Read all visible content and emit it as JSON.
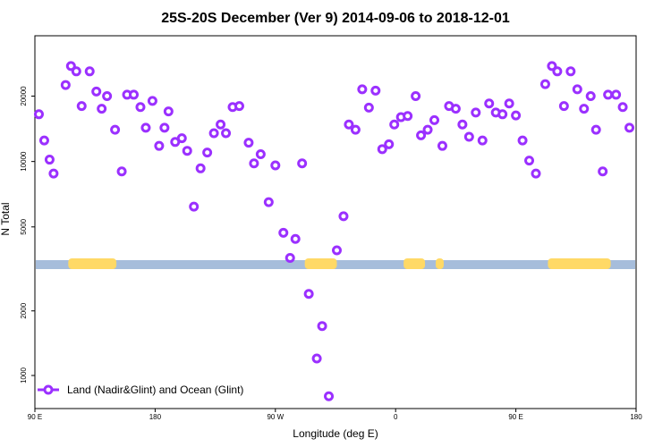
{
  "chart_data": {
    "type": "scatter",
    "title": "25S-20S December (Ver 9)   2014-09-06 to 2018-12-01",
    "xlabel": "Longitude (deg E)",
    "ylabel": "N Total",
    "xlim": [
      90,
      540
    ],
    "y_scale": "piecewise-log",
    "x_ticks": [
      {
        "value": 90,
        "label": "90 E"
      },
      {
        "value": 180,
        "label": "180"
      },
      {
        "value": 270,
        "label": "90 W"
      },
      {
        "value": 360,
        "label": "0"
      },
      {
        "value": 450,
        "label": "90 E"
      },
      {
        "value": 540,
        "label": "180"
      }
    ],
    "y_ticks_upper": [
      5000,
      10000,
      20000
    ],
    "y_ticks_lower": [
      1000,
      2000
    ],
    "grid": false,
    "legend_position": "bottom-left",
    "marker_color": "#9b30ff",
    "surface_colors": {
      "ocean": "#a6bddb",
      "land": "#ffd966"
    },
    "series": [
      {
        "name": "Land (Nadir&Glint) and Ocean (Glint)",
        "points": [
          [
            93,
            16500
          ],
          [
            97,
            12500
          ],
          [
            101,
            10200
          ],
          [
            104,
            8800
          ],
          [
            113,
            22500
          ],
          [
            117,
            27500
          ],
          [
            121,
            26000
          ],
          [
            125,
            18000
          ],
          [
            131,
            26000
          ],
          [
            136,
            21000
          ],
          [
            140,
            17500
          ],
          [
            144,
            20000
          ],
          [
            150,
            14000
          ],
          [
            155,
            9000
          ],
          [
            159,
            20300
          ],
          [
            164,
            20300
          ],
          [
            169,
            17800
          ],
          [
            173,
            14300
          ],
          [
            178,
            19000
          ],
          [
            183,
            11800
          ],
          [
            187,
            14300
          ],
          [
            190,
            17000
          ],
          [
            195,
            12300
          ],
          [
            200,
            12800
          ],
          [
            204,
            11200
          ],
          [
            209,
            6200
          ],
          [
            214,
            9300
          ],
          [
            219,
            11000
          ],
          [
            224,
            13500
          ],
          [
            229,
            14800
          ],
          [
            233,
            13500
          ],
          [
            238,
            17800
          ],
          [
            243,
            18000
          ],
          [
            250,
            12200
          ],
          [
            254,
            9800
          ],
          [
            259,
            10800
          ],
          [
            265,
            6500
          ],
          [
            270,
            9600
          ],
          [
            276,
            4700
          ],
          [
            281,
            3600
          ],
          [
            285,
            4400
          ],
          [
            290,
            9800
          ],
          [
            295,
            2400
          ],
          [
            301,
            1200
          ],
          [
            305,
            1700
          ],
          [
            310,
            800
          ],
          [
            316,
            3900
          ],
          [
            321,
            5600
          ],
          [
            325,
            14800
          ],
          [
            330,
            14000
          ],
          [
            335,
            21500
          ],
          [
            340,
            17700
          ],
          [
            345,
            21200
          ],
          [
            350,
            11400
          ],
          [
            355,
            12000
          ],
          [
            359,
            14800
          ],
          [
            364,
            16000
          ],
          [
            369,
            16200
          ],
          [
            375,
            20000
          ],
          [
            379,
            13200
          ],
          [
            384,
            14000
          ],
          [
            389,
            15500
          ],
          [
            395,
            11800
          ],
          [
            400,
            18000
          ],
          [
            405,
            17500
          ],
          [
            410,
            14800
          ],
          [
            415,
            13000
          ],
          [
            420,
            16800
          ],
          [
            425,
            12500
          ],
          [
            430,
            18500
          ],
          [
            435,
            16800
          ],
          [
            440,
            16500
          ],
          [
            445,
            18500
          ],
          [
            450,
            16300
          ],
          [
            455,
            12500
          ],
          [
            460,
            10100
          ],
          [
            465,
            8800
          ],
          [
            472,
            22700
          ],
          [
            477,
            27500
          ],
          [
            481,
            26000
          ],
          [
            486,
            18000
          ],
          [
            491,
            26000
          ],
          [
            496,
            21500
          ],
          [
            501,
            17500
          ],
          [
            506,
            20000
          ],
          [
            510,
            14000
          ],
          [
            515,
            9000
          ],
          [
            519,
            20300
          ],
          [
            525,
            20300
          ],
          [
            530,
            17800
          ],
          [
            535,
            14300
          ]
        ]
      }
    ]
  },
  "surface_bar": {
    "land_segments": [
      [
        115,
        151
      ],
      [
        292,
        316
      ],
      [
        366,
        382
      ],
      [
        390,
        396
      ],
      [
        474,
        521
      ]
    ]
  }
}
